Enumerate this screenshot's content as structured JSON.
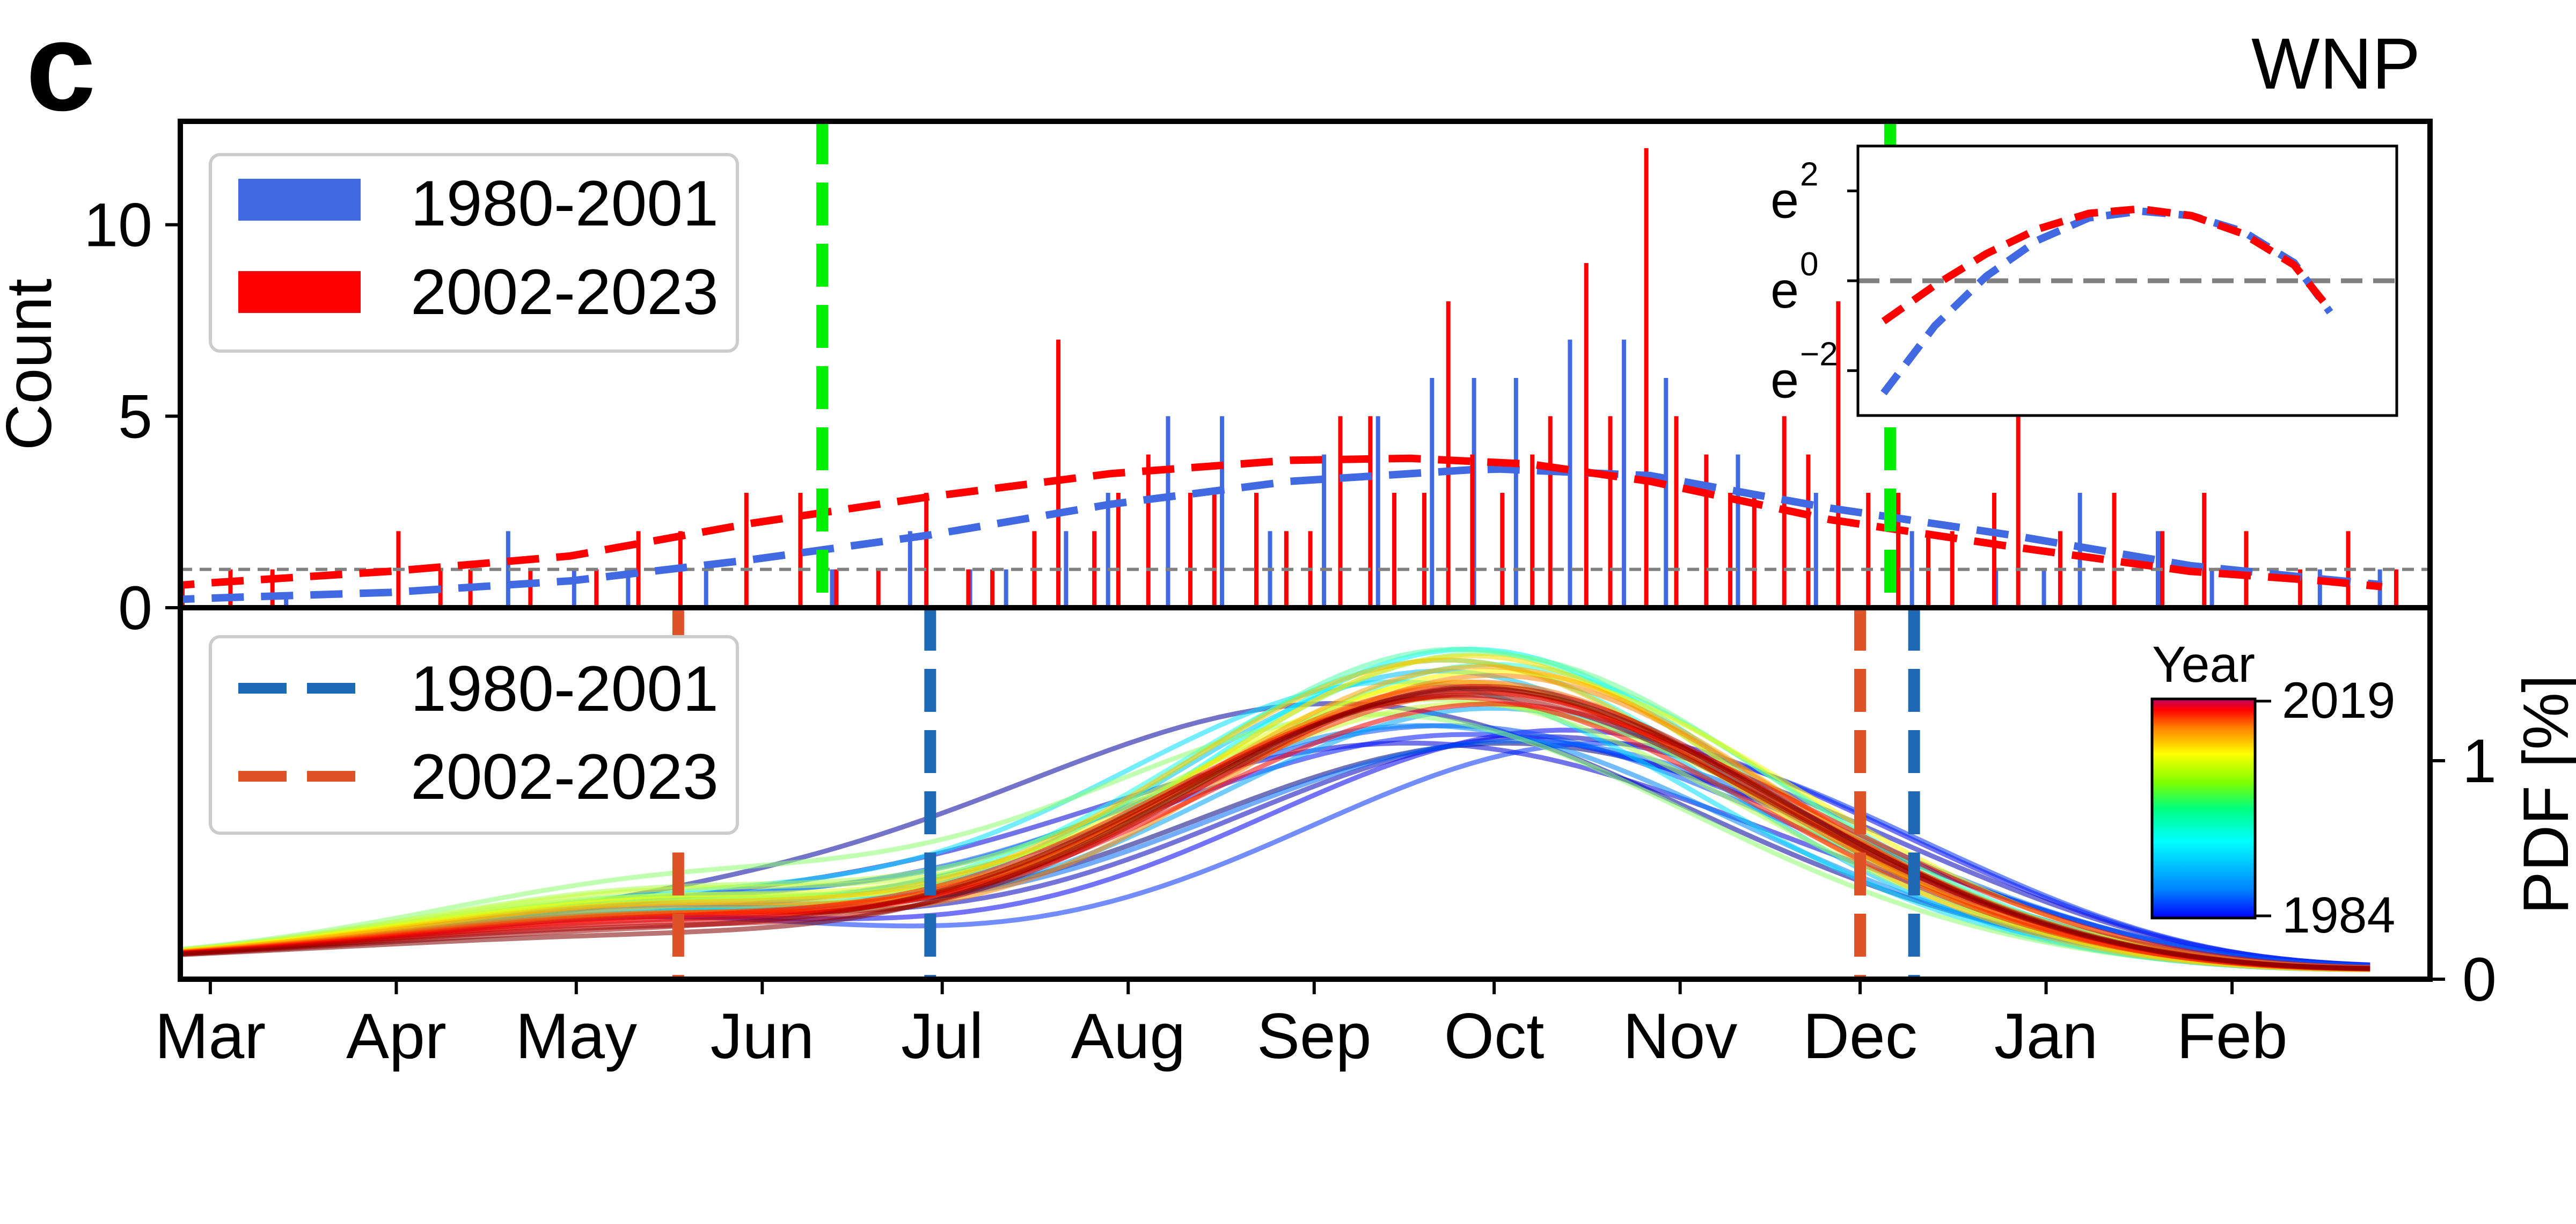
{
  "panel_label": "c",
  "region": "WNP",
  "chart_data": [
    {
      "type": "bar",
      "ylabel": "Count",
      "ylim": [
        0,
        12.7
      ],
      "yticks": [
        0,
        5,
        10
      ],
      "xlim": [
        -5,
        370
      ],
      "month_ticks": [
        {
          "label": "Mar",
          "x": 0
        },
        {
          "label": "Apr",
          "x": 31
        },
        {
          "label": "May",
          "x": 61
        },
        {
          "label": "Jun",
          "x": 92
        },
        {
          "label": "Jul",
          "x": 122
        },
        {
          "label": "Aug",
          "x": 153
        },
        {
          "label": "Sep",
          "x": 184
        },
        {
          "label": "Oct",
          "x": 214
        },
        {
          "label": "Nov",
          "x": 245
        },
        {
          "label": "Dec",
          "x": 275
        },
        {
          "label": "Jan",
          "x": 306
        },
        {
          "label": "Feb",
          "x": 337
        }
      ],
      "series": [
        {
          "name": "1980-2001",
          "color": "#4169e1",
          "x": [
            -7,
            13,
            50,
            61,
            70,
            83,
            104,
            117,
            127,
            133,
            143,
            150,
            160,
            169,
            177,
            186,
            195,
            204,
            211,
            218,
            227,
            236,
            243,
            255,
            268,
            284,
            298,
            306,
            312,
            325,
            334,
            352,
            362
          ],
          "values": [
            0.5,
            0.4,
            2,
            1,
            1,
            1,
            1,
            2,
            1,
            1,
            2,
            3,
            5,
            5,
            2,
            4,
            5,
            6,
            6,
            6,
            7,
            7,
            6,
            4,
            3,
            2,
            1,
            1,
            3,
            2,
            1,
            1,
            1
          ]
        },
        {
          "name": "2002-2023",
          "color": "#ff0000",
          "x": [
            -5,
            3,
            10,
            31,
            38,
            43,
            53,
            64,
            71,
            78,
            89,
            98,
            104,
            111,
            119,
            126,
            130,
            137,
            141,
            147,
            151,
            156,
            163,
            167,
            174,
            179,
            183,
            188,
            193,
            197,
            202,
            206,
            210,
            215,
            220,
            223,
            229,
            233,
            239,
            244,
            249,
            253,
            257,
            262,
            266,
            271,
            276,
            281,
            286,
            290,
            297,
            301,
            308,
            317,
            325,
            332,
            339,
            348,
            356,
            364
          ],
          "values": [
            0.5,
            1,
            1,
            2,
            1,
            1,
            1,
            1,
            2,
            2,
            3,
            3,
            1,
            1,
            3,
            1,
            1,
            2,
            7,
            2,
            3,
            4,
            3,
            3,
            3,
            2,
            2,
            5,
            5,
            3,
            3,
            8,
            4,
            3,
            4,
            5,
            9,
            5,
            12,
            5,
            4,
            3,
            3,
            5,
            4,
            8,
            3,
            3,
            2,
            2,
            3,
            5,
            2,
            3,
            2,
            3,
            2,
            1,
            2,
            1
          ]
        }
      ],
      "fits": [
        {
          "name": "1980-2001",
          "color": "#4169e1",
          "x": [
            -8,
            0,
            30,
            60,
            90,
            120,
            150,
            180,
            210,
            215,
            240,
            270,
            300,
            330,
            352,
            362
          ],
          "values": [
            0.2,
            0.25,
            0.4,
            0.7,
            1.25,
            1.9,
            2.7,
            3.3,
            3.6,
            3.62,
            3.45,
            2.6,
            1.9,
            1.1,
            0.75,
            0.6
          ]
        },
        {
          "name": "2002-2023",
          "color": "#ff0000",
          "x": [
            -8,
            0,
            30,
            60,
            90,
            120,
            150,
            180,
            200,
            220,
            240,
            270,
            300,
            330,
            352,
            362
          ],
          "values": [
            0.55,
            0.65,
            0.95,
            1.35,
            2.2,
            2.9,
            3.5,
            3.85,
            3.9,
            3.75,
            3.3,
            2.3,
            1.6,
            0.95,
            0.7,
            0.55
          ]
        }
      ],
      "threshold_line": {
        "y": 1,
        "color": "#808080"
      },
      "vlines": [
        {
          "x": 102,
          "color": "#00ee00"
        },
        {
          "x": 280,
          "color": "#00ee00"
        }
      ],
      "legend": {
        "placement": "top-left",
        "entries": [
          "1980-2001",
          "2002-2023"
        ]
      }
    },
    {
      "type": "line",
      "placement": "inset-top-right",
      "yscale": "log (base e)",
      "yticklabels": [
        "e",
        "e",
        "e"
      ],
      "ytick_exponents": [
        "2",
        "0",
        "−2"
      ],
      "ytick_values": [
        2,
        0,
        -2
      ],
      "ylim": [
        -3,
        3
      ],
      "xlim": [
        270,
        375
      ],
      "series": [
        {
          "name": "1980-2001",
          "color": "#4169e1",
          "x": [
            275,
            285,
            295,
            305,
            315,
            325,
            335,
            345,
            355,
            362
          ],
          "values": [
            -2.5,
            -1.0,
            0.1,
            0.9,
            1.4,
            1.55,
            1.45,
            1.1,
            0.4,
            -0.7
          ]
        },
        {
          "name": "2002-2023",
          "color": "#ff0000",
          "x": [
            275,
            285,
            295,
            305,
            315,
            325,
            335,
            345,
            355,
            362
          ],
          "values": [
            -0.9,
            -0.1,
            0.6,
            1.15,
            1.5,
            1.6,
            1.45,
            1.05,
            0.35,
            -0.65
          ]
        }
      ],
      "hline": {
        "y": 0,
        "color": "#808080"
      }
    },
    {
      "type": "line",
      "ylabel": "PDF [%]",
      "ylim": [
        0,
        1.7
      ],
      "yticks": [
        0,
        1
      ],
      "xlim": [
        -5,
        370
      ],
      "legend": {
        "placement": "top-left",
        "entries": [
          {
            "name": "1980-2001",
            "color": "#1f68b4"
          },
          {
            "name": "2002-2023",
            "color": "#de5228"
          }
        ]
      },
      "vlines": [
        {
          "name": "1980-2001",
          "x": 120,
          "color": "#1f68b4"
        },
        {
          "name": "1980-2001",
          "x": 284,
          "color": "#1f68b4"
        },
        {
          "name": "2002-2023",
          "x": 78,
          "color": "#de5228"
        },
        {
          "name": "2002-2023",
          "x": 275,
          "color": "#de5228"
        }
      ],
      "colorbar": {
        "label": "Year",
        "min": 1984,
        "max": 2019,
        "colormap": "jet"
      },
      "curves": [
        {
          "year": 1984,
          "peak": 216,
          "width": 55,
          "amp": 1.02,
          "early": 0.18
        },
        {
          "year": 1985,
          "peak": 188,
          "width": 58,
          "amp": 1.2,
          "early": 0.15
        },
        {
          "year": 1986,
          "peak": 222,
          "width": 54,
          "amp": 1.05,
          "early": 0.2
        },
        {
          "year": 1987,
          "peak": 200,
          "width": 60,
          "amp": 1.02,
          "early": 0.17
        },
        {
          "year": 1988,
          "peak": 226,
          "width": 52,
          "amp": 1.08,
          "early": 0.19
        },
        {
          "year": 1989,
          "peak": 210,
          "width": 58,
          "amp": 1.06,
          "early": 0.16
        },
        {
          "year": 1990,
          "peak": 232,
          "width": 50,
          "amp": 1.02,
          "early": 0.2
        },
        {
          "year": 1991,
          "peak": 206,
          "width": 56,
          "amp": 1.1,
          "early": 0.21
        },
        {
          "year": 1992,
          "peak": 218,
          "width": 54,
          "amp": 1.03,
          "early": 0.23
        },
        {
          "year": 1993,
          "peak": 202,
          "width": 52,
          "amp": 1.1,
          "early": 0.24
        },
        {
          "year": 1994,
          "peak": 214,
          "width": 50,
          "amp": 1.18,
          "early": 0.22
        },
        {
          "year": 1995,
          "peak": 205,
          "width": 47,
          "amp": 1.35,
          "early": 0.2
        },
        {
          "year": 1996,
          "peak": 198,
          "width": 50,
          "amp": 1.3,
          "early": 0.25
        },
        {
          "year": 1997,
          "peak": 210,
          "width": 46,
          "amp": 1.45,
          "early": 0.22
        },
        {
          "year": 1998,
          "peak": 206,
          "width": 48,
          "amp": 1.4,
          "early": 0.24
        },
        {
          "year": 1999,
          "peak": 214,
          "width": 48,
          "amp": 1.38,
          "early": 0.27
        },
        {
          "year": 2000,
          "peak": 208,
          "width": 47,
          "amp": 1.45,
          "early": 0.26
        },
        {
          "year": 2001,
          "peak": 212,
          "width": 48,
          "amp": 1.43,
          "early": 0.28
        },
        {
          "year": 2002,
          "peak": 195,
          "width": 52,
          "amp": 1.15,
          "early": 0.32
        },
        {
          "year": 2003,
          "peak": 205,
          "width": 50,
          "amp": 1.22,
          "early": 0.3
        },
        {
          "year": 2004,
          "peak": 210,
          "width": 52,
          "amp": 1.2,
          "early": 0.29
        },
        {
          "year": 2005,
          "peak": 208,
          "width": 49,
          "amp": 1.3,
          "early": 0.27
        },
        {
          "year": 2006,
          "peak": 214,
          "width": 50,
          "amp": 1.35,
          "early": 0.26
        },
        {
          "year": 2007,
          "peak": 210,
          "width": 46,
          "amp": 1.42,
          "early": 0.25
        },
        {
          "year": 2008,
          "peak": 206,
          "width": 47,
          "amp": 1.4,
          "early": 0.24
        },
        {
          "year": 2009,
          "peak": 212,
          "width": 48,
          "amp": 1.37,
          "early": 0.23
        },
        {
          "year": 2010,
          "peak": 214,
          "width": 47,
          "amp": 1.33,
          "early": 0.21
        },
        {
          "year": 2011,
          "peak": 211,
          "width": 48,
          "amp": 1.3,
          "early": 0.2
        },
        {
          "year": 2012,
          "peak": 209,
          "width": 49,
          "amp": 1.28,
          "early": 0.19
        },
        {
          "year": 2013,
          "peak": 212,
          "width": 50,
          "amp": 1.25,
          "early": 0.18
        },
        {
          "year": 2014,
          "peak": 207,
          "width": 50,
          "amp": 1.23,
          "early": 0.17
        },
        {
          "year": 2015,
          "peak": 214,
          "width": 52,
          "amp": 1.2,
          "early": 0.16
        },
        {
          "year": 2016,
          "peak": 210,
          "width": 50,
          "amp": 1.26,
          "early": 0.15
        },
        {
          "year": 2017,
          "peak": 212,
          "width": 49,
          "amp": 1.28,
          "early": 0.14
        },
        {
          "year": 2018,
          "peak": 209,
          "width": 51,
          "amp": 1.24,
          "early": 0.12
        },
        {
          "year": 2019,
          "peak": 211,
          "width": 50,
          "amp": 1.27,
          "early": 0.1
        }
      ]
    }
  ]
}
